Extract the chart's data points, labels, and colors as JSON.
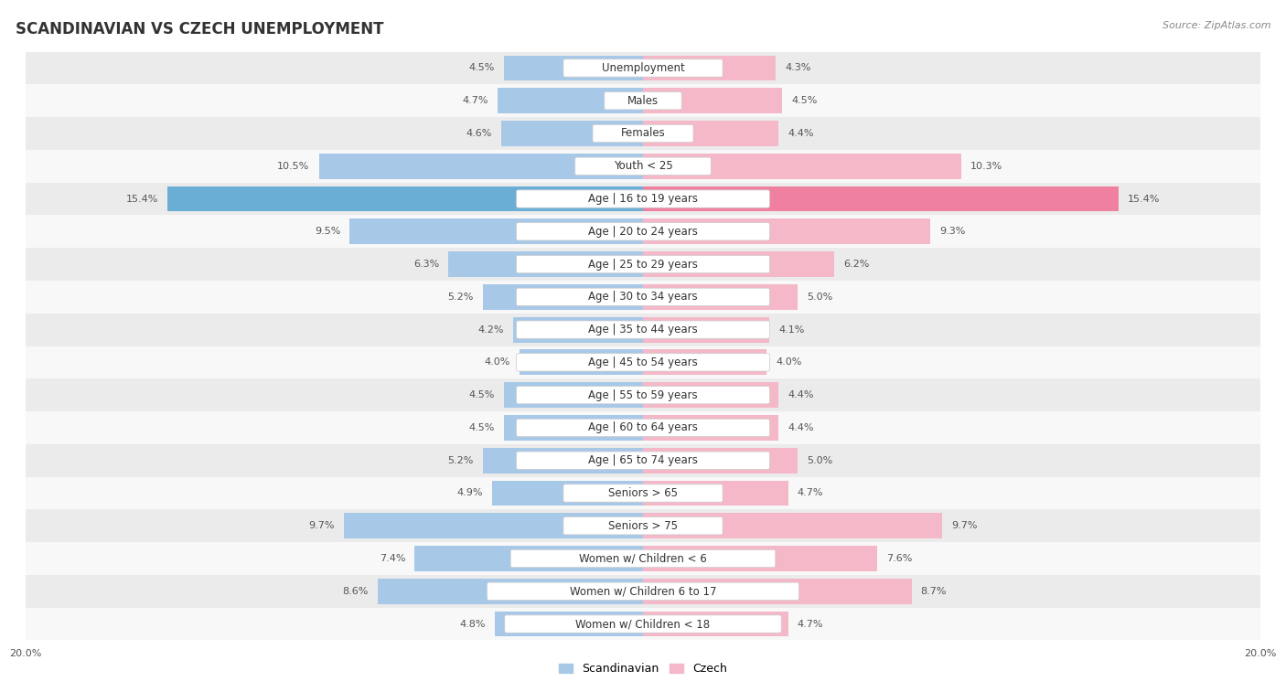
{
  "title": "SCANDINAVIAN VS CZECH UNEMPLOYMENT",
  "source": "Source: ZipAtlas.com",
  "categories": [
    "Unemployment",
    "Males",
    "Females",
    "Youth < 25",
    "Age | 16 to 19 years",
    "Age | 20 to 24 years",
    "Age | 25 to 29 years",
    "Age | 30 to 34 years",
    "Age | 35 to 44 years",
    "Age | 45 to 54 years",
    "Age | 55 to 59 years",
    "Age | 60 to 64 years",
    "Age | 65 to 74 years",
    "Seniors > 65",
    "Seniors > 75",
    "Women w/ Children < 6",
    "Women w/ Children 6 to 17",
    "Women w/ Children < 18"
  ],
  "scandinavian": [
    4.5,
    4.7,
    4.6,
    10.5,
    15.4,
    9.5,
    6.3,
    5.2,
    4.2,
    4.0,
    4.5,
    4.5,
    5.2,
    4.9,
    9.7,
    7.4,
    8.6,
    4.8
  ],
  "czech": [
    4.3,
    4.5,
    4.4,
    10.3,
    15.4,
    9.3,
    6.2,
    5.0,
    4.1,
    4.0,
    4.4,
    4.4,
    5.0,
    4.7,
    9.7,
    7.6,
    8.7,
    4.7
  ],
  "scandinavian_color": "#a8c8e8",
  "czech_color": "#f4b8c8",
  "highlight_scandinavian_color": "#6aaed6",
  "highlight_czech_color": "#f080a0",
  "row_bg_odd": "#ebebeb",
  "row_bg_even": "#f8f8f8",
  "axis_max": 20.0,
  "title_fontsize": 12,
  "label_fontsize": 8.5,
  "value_fontsize": 8,
  "legend_fontsize": 9,
  "source_fontsize": 8
}
